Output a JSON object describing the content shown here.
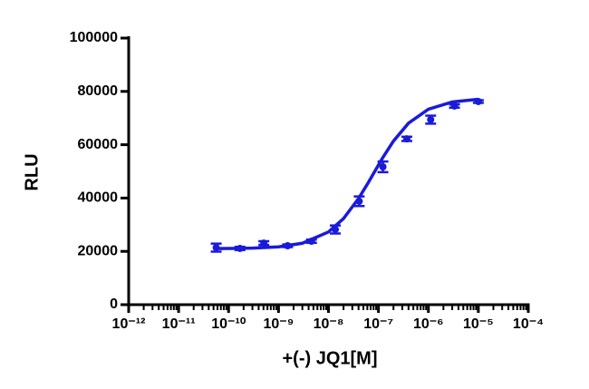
{
  "chart_data": {
    "type": "scatter",
    "xlabel": "+(-) JQ1[M]",
    "ylabel": "RLU",
    "xlog": true,
    "xlim": [
      1e-12,
      0.0001
    ],
    "xticks": [
      {
        "value": 1e-12,
        "label": "10⁻¹²"
      },
      {
        "value": 1e-11,
        "label": "10⁻¹¹"
      },
      {
        "value": 1e-10,
        "label": "10⁻¹⁰"
      },
      {
        "value": 1e-09,
        "label": "10⁻⁹"
      },
      {
        "value": 1e-08,
        "label": "10⁻⁸"
      },
      {
        "value": 1e-07,
        "label": "10⁻⁷"
      },
      {
        "value": 1e-06,
        "label": "10⁻⁶"
      },
      {
        "value": 1e-05,
        "label": "10⁻⁵"
      },
      {
        "value": 0.0001,
        "label": "10⁻⁴"
      }
    ],
    "ylim": [
      0,
      100000
    ],
    "yticks": [
      0,
      20000,
      40000,
      60000,
      80000,
      100000
    ],
    "series": [
      {
        "type": "scatter",
        "color": "#1a1adb",
        "x": [
          5.65e-11,
          1.69e-10,
          5.08e-10,
          1.52e-09,
          4.57e-09,
          1.37e-08,
          4.12e-08,
          1.23e-07,
          3.7e-07,
          1.11e-06,
          3.33e-06,
          1e-05
        ],
        "values": [
          21400,
          21100,
          23100,
          22100,
          23800,
          28200,
          38800,
          51700,
          62200,
          69400,
          74500,
          76200
        ],
        "errors": [
          1500,
          600,
          700,
          500,
          600,
          1500,
          1800,
          2000,
          800,
          1500,
          600,
          500
        ]
      },
      {
        "type": "line",
        "color": "#1a1adb",
        "x": [
          5.65e-11,
          1e-10,
          3e-10,
          1e-09,
          3e-09,
          1e-08,
          2e-08,
          4e-08,
          6e-08,
          8e-08,
          1.2e-07,
          2e-07,
          4e-07,
          1e-06,
          3e-06,
          1e-05
        ],
        "values": [
          21040,
          21070,
          21210,
          21700,
          23040,
          27280,
          32300,
          39830,
          45210,
          49250,
          54900,
          61360,
          68080,
          73320,
          76030,
          77050
        ]
      }
    ]
  }
}
